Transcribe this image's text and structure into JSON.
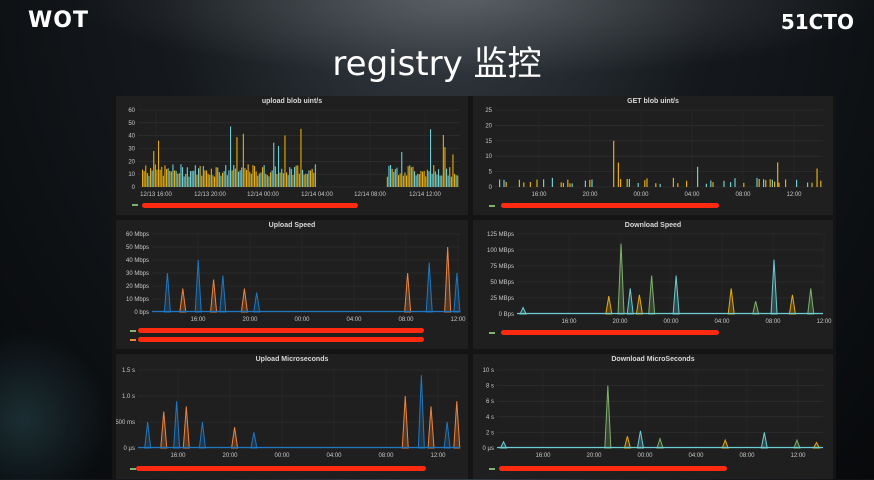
{
  "slide": {
    "title": "registry 监控",
    "logo_left": "WOT",
    "logo_right": "51CTO"
  },
  "colors": {
    "teal": "#6ccdd3",
    "yellow": "#e5ac0e",
    "blue": "#1f78c1",
    "orange": "#ef843c",
    "green": "#7eb26d"
  },
  "chart_data": [
    {
      "type": "bar",
      "title": "upload blob uint/s",
      "x_ticks": [
        "12/13 16:00",
        "12/13 20:00",
        "12/14 00:00",
        "12/14 04:00",
        "12/14 08:00",
        "12/14 12:00"
      ],
      "y_ticks": [
        "0",
        "10",
        "20",
        "30",
        "40",
        "50",
        "60"
      ],
      "ylim": [
        0,
        60
      ]
    },
    {
      "type": "bar",
      "title": "GET blob uint/s",
      "x_ticks": [
        "16:00",
        "20:00",
        "00:00",
        "04:00",
        "08:00",
        "12:00"
      ],
      "y_ticks": [
        "0",
        "5",
        "10",
        "15",
        "20",
        "25"
      ],
      "ylim": [
        0,
        25
      ]
    },
    {
      "type": "line",
      "title": "Upload Speed",
      "x_ticks": [
        "16:00",
        "20:00",
        "00:00",
        "04:00",
        "08:00",
        "12:00"
      ],
      "y_ticks": [
        "0 bps",
        "10 Mbps",
        "20 Mbps",
        "30 Mbps",
        "40 Mbps",
        "50 Mbps",
        "60 Mbps"
      ],
      "ylim": [
        0,
        60
      ]
    },
    {
      "type": "line",
      "title": "Download Speed",
      "x_ticks": [
        "16:00",
        "20:00",
        "00:00",
        "04:00",
        "08:00",
        "12:00"
      ],
      "y_ticks": [
        "0 Bps",
        "25 MBps",
        "50 MBps",
        "75 MBps",
        "100 MBps",
        "125 MBps"
      ],
      "ylim": [
        0,
        125
      ]
    },
    {
      "type": "line",
      "title": "Upload Microseconds",
      "x_ticks": [
        "16:00",
        "20:00",
        "00:00",
        "04:00",
        "08:00",
        "12:00"
      ],
      "y_ticks": [
        "0 µs",
        "500 ms",
        "1.0 s",
        "1.5 s"
      ],
      "ylim": [
        0,
        1.5
      ]
    },
    {
      "type": "line",
      "title": "Download MicroSeconds",
      "x_ticks": [
        "16:00",
        "20:00",
        "00:00",
        "04:00",
        "08:00",
        "12:00"
      ],
      "y_ticks": [
        "0 µs",
        "2 s",
        "4 s",
        "6 s",
        "8 s",
        "10 s"
      ],
      "ylim": [
        0,
        10
      ]
    }
  ]
}
